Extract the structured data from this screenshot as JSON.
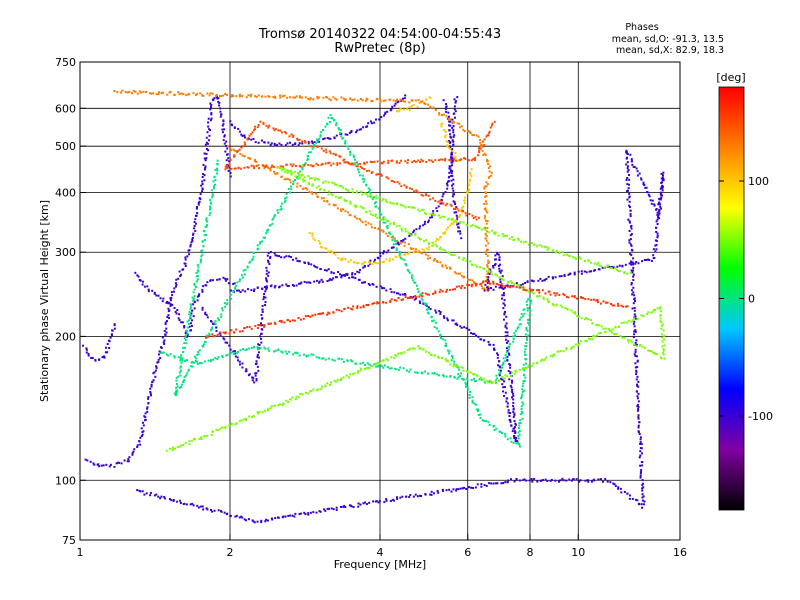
{
  "header": {
    "title": "Tromsø 20140322 04:54:00-04:55:43",
    "subtitle": "RwPretec (8p)"
  },
  "phase_box": {
    "heading": "Phases",
    "line_o": "mean, sd,O:  -91.3, 13.5",
    "line_x": "mean, sd,X:  82.9, 18.3"
  },
  "chart_data": {
    "type": "scatter",
    "xlabel": "Frequency [MHz]",
    "ylabel": "Stationary phase Virtual Height [km]",
    "x_scale": "log",
    "y_scale": "log",
    "xlim": [
      1,
      16
    ],
    "ylim": [
      75,
      750
    ],
    "x_ticks": [
      1,
      2,
      4,
      6,
      8,
      10,
      16
    ],
    "y_ticks": [
      75,
      100,
      200,
      300,
      400,
      500,
      600,
      750
    ],
    "x_gridlines": [
      2,
      4,
      6,
      8,
      10
    ],
    "y_gridlines": [
      100,
      200,
      300,
      400,
      500,
      600
    ],
    "grid": true,
    "colorbar": {
      "label": "[deg]",
      "range": [
        -180,
        180
      ],
      "ticks": [
        100,
        0,
        -100
      ],
      "colormap": "rainbow",
      "stops": [
        "#000000",
        "#8000a0",
        "#0000ff",
        "#00c8ff",
        "#00ff00",
        "#ffff00",
        "#ff8000",
        "#ff0000"
      ]
    },
    "series": [
      {
        "phase": -100,
        "points": [
          [
            1.02,
            190
          ],
          [
            1.05,
            180
          ],
          [
            1.08,
            178
          ],
          [
            1.12,
            181
          ],
          [
            1.18,
            215
          ]
        ]
      },
      {
        "phase": -100,
        "points": [
          [
            1.03,
            110
          ],
          [
            1.08,
            108
          ],
          [
            1.12,
            107
          ],
          [
            1.16,
            107
          ],
          [
            1.25,
            110
          ],
          [
            1.32,
            120
          ],
          [
            1.38,
            150
          ],
          [
            1.42,
            170
          ],
          [
            1.48,
            200
          ],
          [
            1.52,
            240
          ],
          [
            1.57,
            265
          ],
          [
            1.62,
            280
          ],
          [
            1.68,
            320
          ],
          [
            1.75,
            400
          ],
          [
            1.8,
            500
          ],
          [
            1.84,
            620
          ],
          [
            1.88,
            640
          ],
          [
            1.92,
            600
          ],
          [
            1.96,
            500
          ],
          [
            2.0,
            430
          ]
        ]
      },
      {
        "phase": -100,
        "points": [
          [
            1.3,
            270
          ],
          [
            1.35,
            255
          ],
          [
            1.45,
            240
          ],
          [
            1.55,
            230
          ],
          [
            1.6,
            215
          ],
          [
            1.65,
            200
          ],
          [
            1.7,
            235
          ],
          [
            1.8,
            260
          ],
          [
            1.95,
            265
          ],
          [
            2.05,
            255
          ]
        ]
      },
      {
        "phase": -100,
        "points": [
          [
            2.0,
            248
          ],
          [
            2.2,
            250
          ],
          [
            2.5,
            255
          ],
          [
            3.0,
            260
          ],
          [
            3.3,
            265
          ],
          [
            3.6,
            272
          ],
          [
            3.9,
            290
          ],
          [
            4.2,
            305
          ],
          [
            4.6,
            325
          ],
          [
            5.0,
            350
          ],
          [
            5.3,
            380
          ],
          [
            5.5,
            420
          ],
          [
            5.6,
            500
          ],
          [
            5.65,
            620
          ],
          [
            5.7,
            640
          ]
        ]
      },
      {
        "phase": -100,
        "points": [
          [
            2.0,
            560
          ],
          [
            2.15,
            520
          ],
          [
            2.4,
            505
          ],
          [
            2.8,
            505
          ],
          [
            3.2,
            520
          ],
          [
            3.6,
            540
          ],
          [
            4.0,
            570
          ],
          [
            4.3,
            610
          ],
          [
            4.55,
            640
          ]
        ]
      },
      {
        "phase": -100,
        "points": [
          [
            5.4,
            620
          ],
          [
            5.5,
            560
          ],
          [
            5.55,
            500
          ],
          [
            5.58,
            440
          ],
          [
            5.62,
            390
          ],
          [
            5.7,
            350
          ],
          [
            5.8,
            320
          ]
        ]
      },
      {
        "phase": 100,
        "points": [
          [
            2.9,
            330
          ],
          [
            3.1,
            305
          ],
          [
            3.35,
            290
          ],
          [
            3.6,
            285
          ],
          [
            3.9,
            285
          ],
          [
            4.2,
            290
          ],
          [
            4.6,
            298
          ],
          [
            5.0,
            306
          ],
          [
            5.4,
            330
          ],
          [
            5.8,
            360
          ],
          [
            6.0,
            400
          ],
          [
            6.1,
            450
          ]
        ]
      },
      {
        "phase": 100,
        "points": [
          [
            4.3,
            590
          ],
          [
            4.6,
            600
          ],
          [
            4.9,
            620
          ],
          [
            5.1,
            640
          ]
        ]
      },
      {
        "phase": 100,
        "points": [
          [
            5.3,
            560
          ],
          [
            5.5,
            500
          ],
          [
            5.8,
            460
          ]
        ]
      },
      {
        "phase": 130,
        "points": [
          [
            1.18,
            650
          ],
          [
            4.85,
            620
          ],
          [
            6.3,
            520
          ],
          [
            6.7,
            440
          ],
          [
            6.5,
            410
          ],
          [
            6.6,
            250
          ],
          [
            1.97,
            500
          ]
        ]
      },
      {
        "phase": 150,
        "points": [
          [
            6.8,
            560
          ],
          [
            6.2,
            470
          ],
          [
            1.95,
            450
          ],
          [
            2.3,
            560
          ],
          [
            6.4,
            350
          ]
        ]
      },
      {
        "phase": -100,
        "points": [
          [
            1.3,
            95
          ],
          [
            2.25,
            82
          ],
          [
            7.4,
            100
          ],
          [
            11.5,
            100
          ],
          [
            13.5,
            88
          ],
          [
            12.5,
            490
          ],
          [
            14.5,
            360
          ],
          [
            14.8,
            440
          ],
          [
            14.2,
            290
          ],
          [
            6.5,
            250
          ],
          [
            6.9,
            300
          ],
          [
            7.0,
            270
          ],
          [
            7.5,
            120
          ],
          [
            6.8,
            190
          ],
          [
            4.7,
            240
          ],
          [
            2.7,
            290
          ],
          [
            2.4,
            300
          ],
          [
            2.25,
            160
          ],
          [
            1.75,
            230
          ]
        ]
      },
      {
        "phase": 0,
        "points": [
          [
            1.45,
            185
          ],
          [
            1.75,
            175
          ],
          [
            2.2,
            190
          ],
          [
            6.8,
            160
          ],
          [
            8.0,
            240
          ],
          [
            7.6,
            118
          ],
          [
            6.4,
            135
          ],
          [
            3.2,
            580
          ],
          [
            1.55,
            150
          ],
          [
            1.9,
            470
          ]
        ]
      },
      {
        "phase": 50,
        "points": [
          [
            1.5,
            115
          ],
          [
            4.75,
            190
          ],
          [
            6.7,
            160
          ],
          [
            14.6,
            230
          ],
          [
            14.9,
            180
          ],
          [
            2.5,
            450
          ],
          [
            12.8,
            270
          ]
        ]
      },
      {
        "phase": 160,
        "points": [
          [
            1.8,
            200
          ],
          [
            6.6,
            260
          ],
          [
            12.7,
            230
          ]
        ]
      }
    ]
  }
}
